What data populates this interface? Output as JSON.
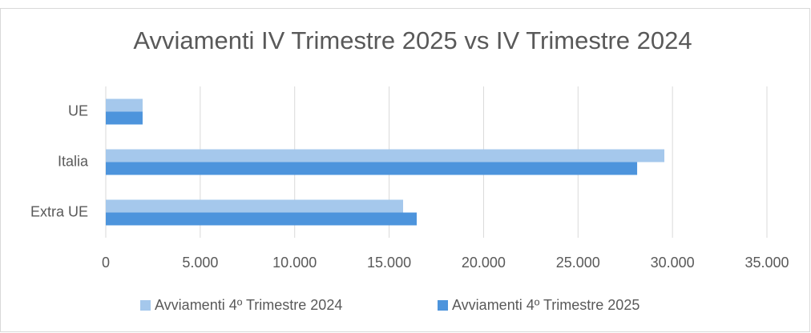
{
  "chart_data": {
    "type": "hbar",
    "title": "Avviamenti IV Trimestre 2025 vs IV Trimestre 2024",
    "categories": [
      "UE",
      "Italia",
      "Extra UE"
    ],
    "series": [
      {
        "name": "Avviamenti 4º Trimestre 2024",
        "color": "#a5c8ec",
        "values": [
          1950,
          29570,
          15740
        ]
      },
      {
        "name": "Avviamenti 4º Trimestre 2025",
        "color": "#4d94dc",
        "values": [
          1950,
          28130,
          16460
        ]
      }
    ],
    "xlim": [
      0,
      35000
    ],
    "xticks": [
      0,
      {
        "value": 5000,
        "label": "5.000"
      },
      {
        "value": 10000,
        "label": "10.000"
      },
      {
        "value": 15000,
        "label": "15.000"
      },
      {
        "value": 20000,
        "label": "20.000"
      },
      {
        "value": 25000,
        "label": "25.000"
      },
      {
        "value": 30000,
        "label": "30.000"
      },
      {
        "value": 35000,
        "label": "35.000"
      }
    ],
    "grid": true,
    "legend": "bottom"
  }
}
